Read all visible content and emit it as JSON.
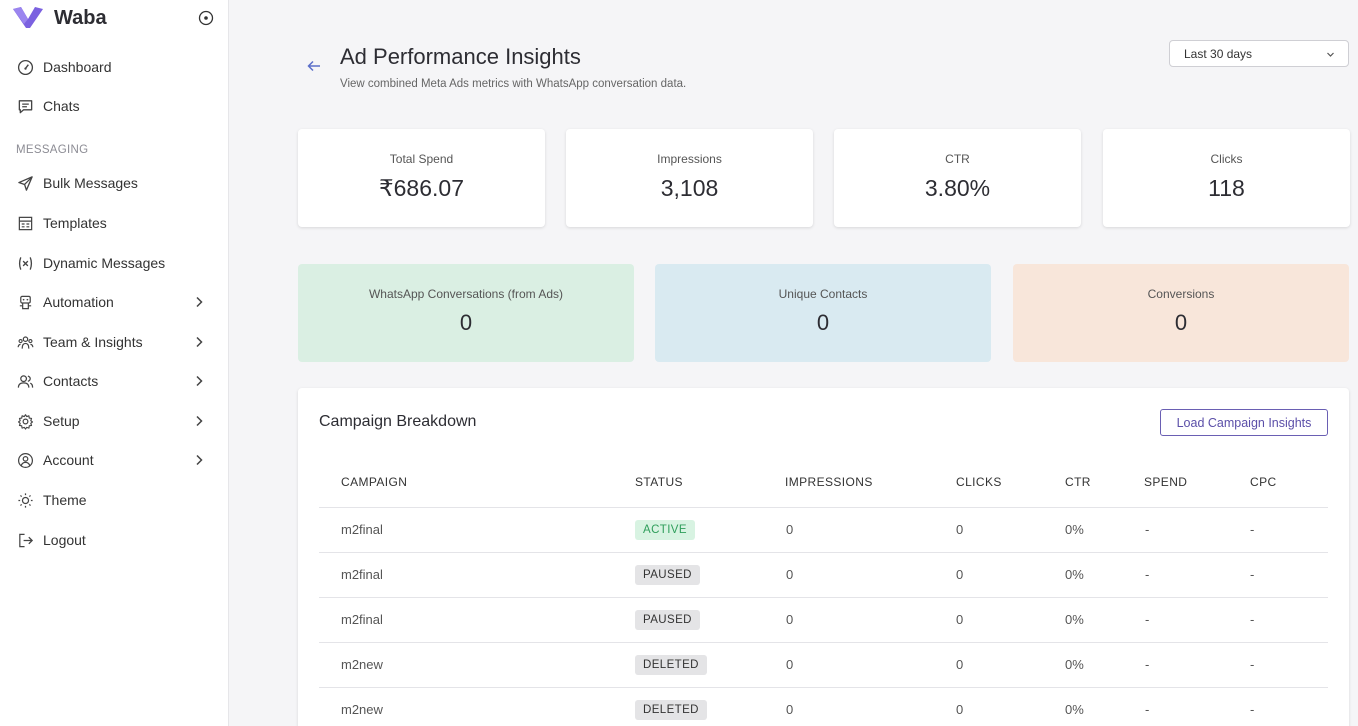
{
  "app": {
    "name": "Waba"
  },
  "sidebar": {
    "items": [
      {
        "label": "Dashboard",
        "icon": "dashboard-icon"
      },
      {
        "label": "Chats",
        "icon": "chat-icon"
      },
      {
        "label": "Bulk Messages",
        "icon": "send-icon"
      },
      {
        "label": "Templates",
        "icon": "template-icon"
      },
      {
        "label": "Dynamic Messages",
        "icon": "variable-icon"
      },
      {
        "label": "Automation",
        "icon": "robot-icon"
      },
      {
        "label": "Team & Insights",
        "icon": "team-icon"
      },
      {
        "label": "Contacts",
        "icon": "contacts-icon"
      },
      {
        "label": "Setup",
        "icon": "gear-icon"
      },
      {
        "label": "Account",
        "icon": "user-circle-icon"
      },
      {
        "label": "Theme",
        "icon": "sun-icon"
      },
      {
        "label": "Logout",
        "icon": "logout-icon"
      }
    ],
    "section_messaging": "MESSAGING"
  },
  "header": {
    "title": "Ad Performance Insights",
    "subtitle": "View combined Meta Ads metrics with WhatsApp conversation data.",
    "date_range": "Last 30 days"
  },
  "stats": [
    {
      "label": "Total Spend",
      "value": "₹686.07"
    },
    {
      "label": "Impressions",
      "value": "3,108"
    },
    {
      "label": "CTR",
      "value": "3.80%"
    },
    {
      "label": "Clicks",
      "value": "118"
    }
  ],
  "metrics": [
    {
      "label": "WhatsApp Conversations (from Ads)",
      "value": "0",
      "color": "#daefe3"
    },
    {
      "label": "Unique Contacts",
      "value": "0",
      "color": "#d9eaf1"
    },
    {
      "label": "Conversions",
      "value": "0",
      "color": "#f8e6da"
    }
  ],
  "campaigns": {
    "title": "Campaign Breakdown",
    "load_button": "Load Campaign Insights",
    "columns": [
      "CAMPAIGN",
      "STATUS",
      "IMPRESSIONS",
      "CLICKS",
      "CTR",
      "SPEND",
      "CPC"
    ],
    "rows": [
      {
        "campaign": "m2final",
        "status": "ACTIVE",
        "impressions": "0",
        "clicks": "0",
        "ctr": "0%",
        "spend": "-",
        "cpc": "-"
      },
      {
        "campaign": "m2final",
        "status": "PAUSED",
        "impressions": "0",
        "clicks": "0",
        "ctr": "0%",
        "spend": "-",
        "cpc": "-"
      },
      {
        "campaign": "m2final",
        "status": "PAUSED",
        "impressions": "0",
        "clicks": "0",
        "ctr": "0%",
        "spend": "-",
        "cpc": "-"
      },
      {
        "campaign": "m2new",
        "status": "DELETED",
        "impressions": "0",
        "clicks": "0",
        "ctr": "0%",
        "spend": "-",
        "cpc": "-"
      },
      {
        "campaign": "m2new",
        "status": "DELETED",
        "impressions": "0",
        "clicks": "0",
        "ctr": "0%",
        "spend": "-",
        "cpc": "-"
      }
    ]
  },
  "colors": {
    "brand": "#7b61e0",
    "active_bg": "#d8f3e2",
    "active_fg": "#2f9e5b",
    "neutral_bg": "#e4e4e6",
    "neutral_fg": "#333333"
  }
}
